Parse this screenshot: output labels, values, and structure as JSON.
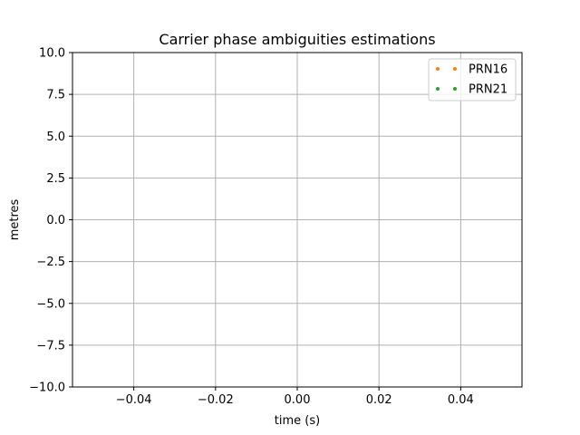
{
  "chart_data": {
    "type": "scatter",
    "title": "Carrier phase ambiguities estimations",
    "xlabel": "time (s)",
    "ylabel": "metres",
    "xlim": [
      -0.055,
      0.055
    ],
    "ylim": [
      -10.0,
      10.0
    ],
    "x_ticks": [
      -0.04,
      -0.02,
      0.0,
      0.02,
      0.04
    ],
    "x_tick_labels": [
      "−0.04",
      "−0.02",
      "0.00",
      "0.02",
      "0.04"
    ],
    "y_ticks": [
      -10.0,
      -7.5,
      -5.0,
      -2.5,
      0.0,
      2.5,
      5.0,
      7.5,
      10.0
    ],
    "y_tick_labels": [
      "−10.0",
      "−7.5",
      "−5.0",
      "−2.5",
      "0.0",
      "2.5",
      "5.0",
      "7.5",
      "10.0"
    ],
    "grid": true,
    "legend_position": "top-right",
    "series": [
      {
        "name": "PRN16",
        "color": "#ff7f0e",
        "x": [],
        "y": []
      },
      {
        "name": "PRN21",
        "color": "#2ca02c",
        "x": [],
        "y": []
      }
    ]
  }
}
